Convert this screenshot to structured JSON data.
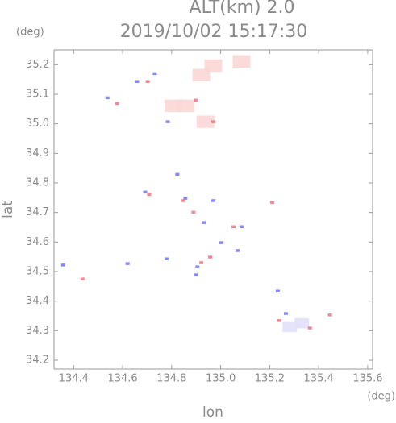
{
  "header": {
    "altitude": "ALT(km) 2.0",
    "y_unit": "(deg)",
    "x_unit": "(deg)"
  },
  "chart_data": {
    "type": "scatter",
    "title": "2019/10/02 15:17:30",
    "x_label": "lon",
    "y_label": "lat",
    "xlim": [
      134.32,
      135.62
    ],
    "ylim": [
      34.17,
      35.25
    ],
    "xticks": [
      134.4,
      134.6,
      134.8,
      {
        "value": 135,
        "label": "135.0"
      },
      135.2,
      135.4,
      135.6
    ],
    "yticks": [
      34.2,
      34.3,
      34.4,
      34.5,
      34.6,
      34.7,
      34.8,
      34.9,
      {
        "value": 35,
        "label": "35.0"
      },
      35.1,
      35.2
    ],
    "grid": false,
    "series": [
      {
        "color": "#fbd6d6",
        "marker_size": 22,
        "x": [
          134.97,
          135.085,
          134.921,
          134.856,
          134.938,
          134.807
        ],
        "y": [
          35.197,
          35.211,
          35.165,
          35.061,
          35.007,
          35.061
        ]
      },
      {
        "color": "#e2e0fa",
        "marker_size": 18,
        "x": [
          135.331,
          135.282
        ],
        "y": [
          34.325,
          34.312
        ]
      },
      {
        "color": "#7a7cf2",
        "marker_size": 5,
        "x": [
          134.357,
          134.659,
          134.538,
          134.784,
          134.823,
          134.692,
          134.856,
          134.97,
          134.931,
          135.003,
          135.069,
          134.905,
          134.898,
          135.266,
          134.78,
          134.62,
          135.085,
          135.233,
          134.731
        ],
        "y": [
          34.522,
          35.143,
          35.088,
          35.007,
          34.829,
          34.769,
          34.748,
          34.74,
          34.666,
          34.598,
          34.571,
          34.516,
          34.489,
          34.358,
          34.543,
          34.527,
          34.652,
          34.434,
          35.17
        ]
      },
      {
        "color": "#f27a86",
        "marker_size": 5,
        "x": [
          134.436,
          134.702,
          134.577,
          134.898,
          134.846,
          134.889,
          135.052,
          134.921,
          134.957,
          135.21,
          135.446,
          135.364,
          135.239,
          134.97,
          134.708
        ],
        "y": [
          34.475,
          35.143,
          35.069,
          35.08,
          34.74,
          34.701,
          34.652,
          34.53,
          34.549,
          34.734,
          34.353,
          34.309,
          34.334,
          35.007,
          34.761
        ]
      }
    ]
  }
}
